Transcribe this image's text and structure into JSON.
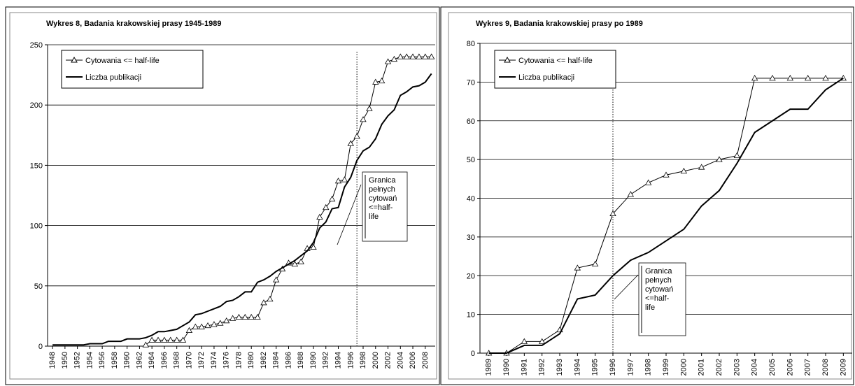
{
  "chart_data": [
    {
      "type": "line",
      "title": "Wykres 8, Badania krakowskiej prasy 1945-1989",
      "x": [
        1948,
        1949,
        1950,
        1951,
        1952,
        1953,
        1954,
        1955,
        1956,
        1957,
        1958,
        1959,
        1960,
        1961,
        1962,
        1963,
        1964,
        1965,
        1966,
        1967,
        1968,
        1969,
        1970,
        1971,
        1972,
        1973,
        1974,
        1975,
        1976,
        1977,
        1978,
        1979,
        1980,
        1981,
        1982,
        1983,
        1984,
        1985,
        1986,
        1987,
        1988,
        1989,
        1990,
        1991,
        1992,
        1993,
        1994,
        1995,
        1996,
        1997,
        1998,
        1999,
        2000,
        2001,
        2002,
        2003,
        2004,
        2005,
        2006,
        2007,
        2008,
        2009
      ],
      "series": [
        {
          "name": "Cytowania <= half-life",
          "color": "#000000",
          "marker": "triangle",
          "values": [
            null,
            null,
            null,
            null,
            null,
            null,
            null,
            null,
            null,
            null,
            null,
            null,
            null,
            null,
            null,
            1,
            5,
            5,
            5,
            5,
            5,
            5,
            13,
            16,
            16,
            17,
            18,
            19,
            21,
            23,
            24,
            24,
            24,
            24,
            36,
            39,
            55,
            64,
            69,
            68,
            70,
            81,
            82,
            107,
            115,
            122,
            137,
            138,
            168,
            174,
            188,
            197,
            219,
            220,
            236,
            238,
            240,
            240,
            240,
            240,
            240,
            240
          ]
        },
        {
          "name": "Liczba publikacji",
          "color": "#000000",
          "values": [
            1,
            1,
            1,
            1,
            1,
            1,
            2,
            2,
            2,
            4,
            4,
            4,
            6,
            6,
            6,
            7,
            9,
            12,
            12,
            13,
            14,
            17,
            20,
            26,
            27,
            29,
            31,
            33,
            37,
            38,
            41,
            45,
            45,
            53,
            55,
            58,
            62,
            65,
            68,
            71,
            75,
            79,
            86,
            98,
            103,
            114,
            115,
            132,
            140,
            154,
            162,
            165,
            172,
            184,
            191,
            196,
            208,
            211,
            215,
            216,
            219,
            226
          ]
        }
      ],
      "xlim": [
        1947.2,
        2009.6
      ],
      "xticks": [
        1948,
        1950,
        1952,
        1954,
        1956,
        1958,
        1960,
        1962,
        1964,
        1966,
        1968,
        1970,
        1972,
        1974,
        1976,
        1978,
        1980,
        1982,
        1984,
        1986,
        1988,
        1990,
        1992,
        1994,
        1996,
        1998,
        2000,
        2002,
        2004,
        2006,
        2008
      ],
      "ylim": [
        0,
        250
      ],
      "yticks": [
        0,
        50,
        100,
        150,
        200,
        250
      ],
      "grid": true,
      "reference_line": 1997,
      "annotation": [
        "Granica",
        "pełnych",
        "cytowań",
        "<=half-",
        "life"
      ]
    },
    {
      "type": "line",
      "title": "Wykres 9, Badania krakowskiej prasy po 1989",
      "x": [
        1989,
        1990,
        1991,
        1992,
        1993,
        1994,
        1995,
        1996,
        1997,
        1998,
        1999,
        2000,
        2001,
        2002,
        2003,
        2004,
        2005,
        2006,
        2007,
        2008,
        2009
      ],
      "series": [
        {
          "name": "Cytowania <= half-life",
          "color": "#000000",
          "marker": "triangle",
          "values": [
            0,
            0,
            3,
            3,
            6,
            22,
            23,
            36,
            41,
            44,
            46,
            47,
            48,
            50,
            51,
            71,
            71,
            71,
            71,
            71,
            71
          ]
        },
        {
          "name": "Liczba publikacji",
          "color": "#000000",
          "values": [
            0,
            0,
            2,
            2,
            5,
            14,
            15,
            20,
            24,
            26,
            29,
            32,
            38,
            42,
            49,
            57,
            60,
            63,
            63,
            68,
            71
          ]
        }
      ],
      "xlim": [
        1988.5,
        2009.5
      ],
      "xticks": [
        1989,
        1990,
        1991,
        1992,
        1993,
        1994,
        1995,
        1996,
        1997,
        1998,
        1999,
        2000,
        2001,
        2002,
        2003,
        2004,
        2005,
        2006,
        2007,
        2008,
        2009
      ],
      "ylim": [
        0,
        80
      ],
      "yticks": [
        0,
        10,
        20,
        30,
        40,
        50,
        60,
        70,
        80
      ],
      "grid": true,
      "reference_line": 1996,
      "annotation": [
        "Granica",
        "pełnych",
        "cytowań",
        "<=half-",
        "life"
      ]
    }
  ]
}
